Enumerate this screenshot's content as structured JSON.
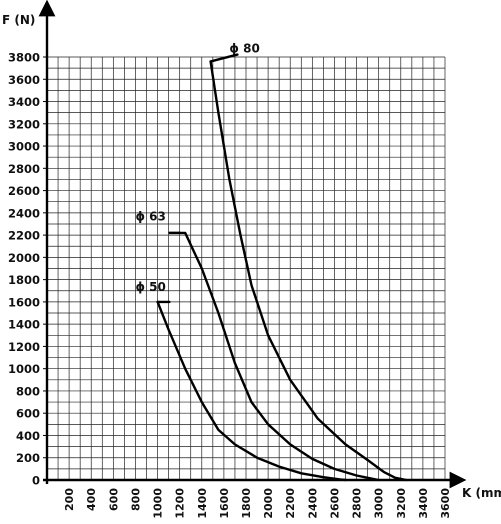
{
  "chart_data": {
    "type": "line",
    "title": "",
    "xlabel": "K (mm)",
    "ylabel": "F (N)",
    "xlim": [
      0,
      3600
    ],
    "ylim": [
      0,
      3800
    ],
    "x_ticks": [
      0,
      200,
      400,
      600,
      800,
      1000,
      1200,
      1400,
      1600,
      1800,
      2000,
      2200,
      2400,
      2600,
      2800,
      3000,
      3200,
      3400,
      3600
    ],
    "x_tick_labels": [
      "200",
      "400",
      "600",
      "800",
      "1000",
      "1200",
      "1400",
      "1600",
      "1800",
      "2000",
      "2200",
      "2400",
      "2600",
      "2800",
      "3000",
      "3200",
      "3400",
      "3600"
    ],
    "y_tick_labels": [
      "0",
      "200",
      "400",
      "600",
      "800",
      "1000",
      "1200",
      "1400",
      "1600",
      "1800",
      "2000",
      "2200",
      "2400",
      "2600",
      "2800",
      "3000",
      "3200",
      "3400",
      "3600",
      "3800"
    ],
    "y_ticks": [
      0,
      200,
      400,
      600,
      800,
      1000,
      1200,
      1400,
      1600,
      1800,
      2000,
      2200,
      2400,
      2600,
      2800,
      3000,
      3200,
      3400,
      3600,
      3800
    ],
    "grid": true,
    "series": [
      {
        "name": "ϕ 80",
        "points": [
          [
            1480,
            3760
          ],
          [
            1550,
            3300
          ],
          [
            1650,
            2700
          ],
          [
            1750,
            2200
          ],
          [
            1850,
            1750
          ],
          [
            2000,
            1300
          ],
          [
            2200,
            900
          ],
          [
            2450,
            550
          ],
          [
            2700,
            320
          ],
          [
            2900,
            180
          ],
          [
            3050,
            70
          ],
          [
            3150,
            20
          ],
          [
            3250,
            0
          ]
        ]
      },
      {
        "name": "ϕ 63",
        "points": [
          [
            1200,
            2220
          ],
          [
            1250,
            2220
          ],
          [
            1400,
            1900
          ],
          [
            1550,
            1500
          ],
          [
            1700,
            1050
          ],
          [
            1850,
            700
          ],
          [
            2000,
            500
          ],
          [
            2200,
            320
          ],
          [
            2400,
            190
          ],
          [
            2600,
            100
          ],
          [
            2800,
            40
          ],
          [
            2950,
            10
          ],
          [
            3000,
            0
          ]
        ]
      },
      {
        "name": "ϕ 50",
        "points": [
          [
            1000,
            1600
          ],
          [
            1100,
            1350
          ],
          [
            1250,
            1000
          ],
          [
            1400,
            700
          ],
          [
            1550,
            450
          ],
          [
            1700,
            320
          ],
          [
            1900,
            200
          ],
          [
            2100,
            120
          ],
          [
            2300,
            60
          ],
          [
            2500,
            25
          ],
          [
            2650,
            5
          ],
          [
            2700,
            0
          ]
        ]
      }
    ],
    "label_anchors": [
      [
        1650,
        3840
      ],
      [
        800,
        2330
      ],
      [
        800,
        1700
      ]
    ]
  }
}
